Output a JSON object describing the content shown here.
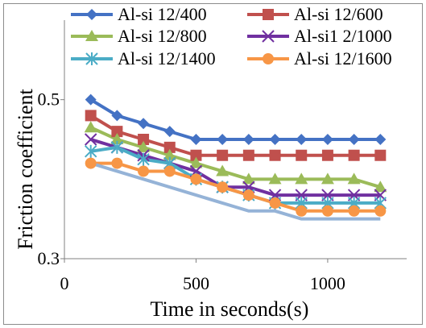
{
  "chart_data": {
    "type": "line",
    "xlabel": "Time in seconds(s)",
    "ylabel": "Friction coefficient",
    "xlim": [
      0,
      1300
    ],
    "ylim": [
      0.3,
      0.6
    ],
    "x_ticks": [
      "0",
      "500",
      "1000"
    ],
    "y_ticks": [
      "0.3",
      "0.5"
    ],
    "x_tick_values": [
      0,
      500,
      1000
    ],
    "y_tick_values": [
      0.3,
      0.5
    ],
    "grid": false,
    "legend_position": "top",
    "x": [
      100,
      200,
      300,
      400,
      500,
      600,
      700,
      800,
      900,
      1000,
      1100,
      1200
    ],
    "series": [
      {
        "name": "Al-si 12/400",
        "color": "#4472C4",
        "marker": "diamond",
        "values": [
          0.5,
          0.48,
          0.47,
          0.46,
          0.45,
          0.45,
          0.45,
          0.45,
          0.45,
          0.45,
          0.45,
          0.45
        ]
      },
      {
        "name": "Al-si 12/600",
        "color": "#C0504D",
        "marker": "square",
        "values": [
          0.48,
          0.46,
          0.45,
          0.44,
          0.43,
          0.43,
          0.43,
          0.43,
          0.43,
          0.43,
          0.43,
          0.43
        ]
      },
      {
        "name": "Al-si 12/800",
        "color": "#9BBB59",
        "marker": "triangle",
        "values": [
          0.465,
          0.45,
          0.44,
          0.43,
          0.42,
          0.41,
          0.4,
          0.4,
          0.4,
          0.4,
          0.4,
          0.39
        ]
      },
      {
        "name": "Al-si1 2/1000",
        "color": "#7030A0",
        "marker": "x",
        "values": [
          0.45,
          0.44,
          0.43,
          0.42,
          0.41,
          0.39,
          0.39,
          0.38,
          0.38,
          0.38,
          0.38,
          0.38
        ]
      },
      {
        "name": "Al-si 12/1400",
        "color": "#4BACC6",
        "marker": "star",
        "values": [
          0.435,
          0.44,
          0.425,
          0.42,
          0.4,
          0.39,
          0.38,
          0.37,
          0.37,
          0.37,
          0.37,
          0.37
        ]
      },
      {
        "name": "Al-si 12/1600",
        "color": "#F79646",
        "marker": "circle",
        "values": [
          0.42,
          0.42,
          0.41,
          0.41,
          0.4,
          0.39,
          0.38,
          0.37,
          0.36,
          0.36,
          0.36,
          0.36
        ]
      },
      {
        "color": "#95B3D7",
        "marker": "none",
        "values": [
          0.42,
          0.41,
          0.4,
          0.39,
          0.38,
          0.37,
          0.36,
          0.36,
          0.35,
          0.35,
          0.35,
          0.35
        ]
      }
    ]
  }
}
